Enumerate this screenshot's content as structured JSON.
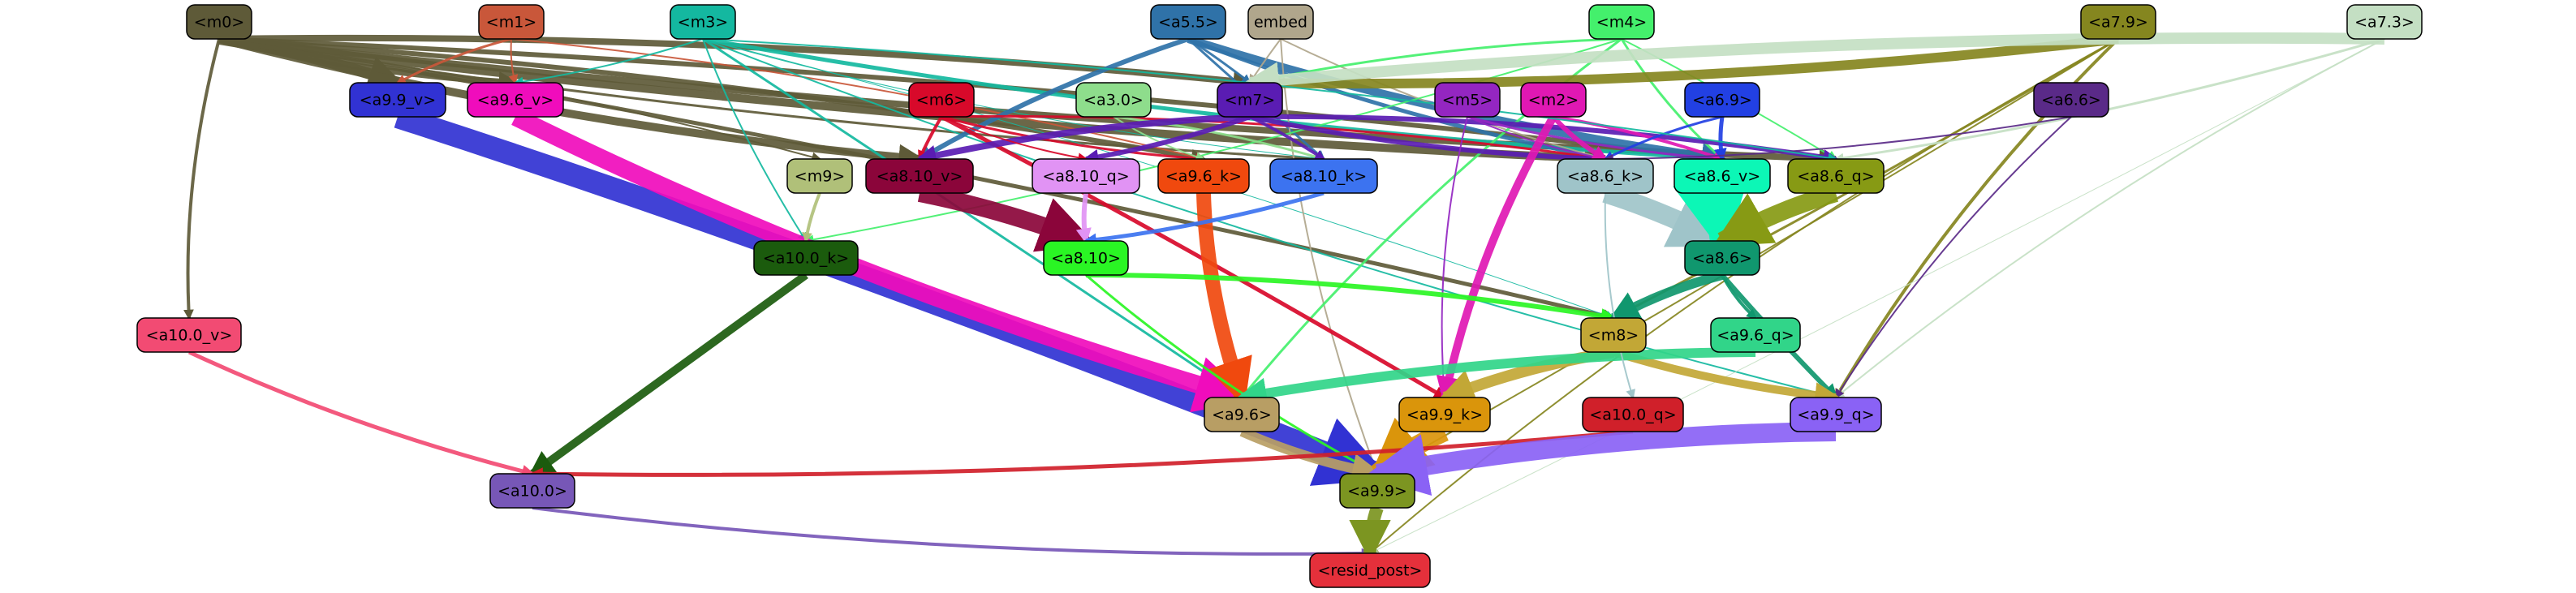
{
  "graph": {
    "nodes": [
      {
        "id": "m0",
        "label": "<m0>",
        "color": "#5e5a38",
        "text": "#000000"
      },
      {
        "id": "m1",
        "label": "<m1>",
        "color": "#c9573a",
        "text": "#000000"
      },
      {
        "id": "m3",
        "label": "<m3>",
        "color": "#14b8a0",
        "text": "#000000"
      },
      {
        "id": "a5.5",
        "label": "<a5.5>",
        "color": "#2f72a8",
        "text": "#000000"
      },
      {
        "id": "embed",
        "label": "embed",
        "color": "#b0a68c",
        "text": "#000000"
      },
      {
        "id": "m4",
        "label": "<m4>",
        "color": "#44f06c",
        "text": "#000000"
      },
      {
        "id": "a7.9",
        "label": "<a7.9>",
        "color": "#85861f",
        "text": "#000000"
      },
      {
        "id": "a7.3",
        "label": "<a7.3>",
        "color": "#c4dfc3",
        "text": "#000000"
      },
      {
        "id": "a9.9_v",
        "label": "<a9.9_v>",
        "color": "#3132d3",
        "text": "#000000"
      },
      {
        "id": "a9.6_v",
        "label": "<a9.6_v>",
        "color": "#f00cbc",
        "text": "#000000"
      },
      {
        "id": "m6",
        "label": "<m6>",
        "color": "#d8092a",
        "text": "#000000"
      },
      {
        "id": "a3.0",
        "label": "<a3.0>",
        "color": "#8edd8c",
        "text": "#000000"
      },
      {
        "id": "m7",
        "label": "<m7>",
        "color": "#5a1cb3",
        "text": "#000000"
      },
      {
        "id": "m5",
        "label": "<m5>",
        "color": "#9426c1",
        "text": "#000000"
      },
      {
        "id": "m2",
        "label": "<m2>",
        "color": "#e018b3",
        "text": "#000000"
      },
      {
        "id": "a6.9",
        "label": "<a6.9>",
        "color": "#2240e3",
        "text": "#000000"
      },
      {
        "id": "a6.6",
        "label": "<a6.6>",
        "color": "#5a2a88",
        "text": "#000000"
      },
      {
        "id": "m9",
        "label": "<m9>",
        "color": "#b0c079",
        "text": "#000000"
      },
      {
        "id": "a8.10_v",
        "label": "<a8.10_v>",
        "color": "#8b053a",
        "text": "#000000"
      },
      {
        "id": "a8.10_q",
        "label": "<a8.10_q>",
        "color": "#e193f4",
        "text": "#000000"
      },
      {
        "id": "a9.6_k",
        "label": "<a9.6_k>",
        "color": "#f0490e",
        "text": "#000000"
      },
      {
        "id": "a8.10_k",
        "label": "<a8.10_k>",
        "color": "#3c73f0",
        "text": "#000000"
      },
      {
        "id": "a8.6_k",
        "label": "<a8.6_k>",
        "color": "#9fc4c9",
        "text": "#000000"
      },
      {
        "id": "a8.6_v",
        "label": "<a8.6_v>",
        "color": "#0cf7b6",
        "text": "#000000"
      },
      {
        "id": "a8.6_q",
        "label": "<a8.6_q>",
        "color": "#879a14",
        "text": "#000000"
      },
      {
        "id": "a10.0_k",
        "label": "<a10.0_k>",
        "color": "#1b5b0d",
        "text": "#000000"
      },
      {
        "id": "a8.10",
        "label": "<a8.10>",
        "color": "#2af524",
        "text": "#000000"
      },
      {
        "id": "a8.6",
        "label": "<a8.6>",
        "color": "#10976e",
        "text": "#000000"
      },
      {
        "id": "a10.0_v",
        "label": "<a10.0_v>",
        "color": "#f24b73",
        "text": "#000000"
      },
      {
        "id": "m8",
        "label": "<m8>",
        "color": "#c2a736",
        "text": "#000000"
      },
      {
        "id": "a9.6_q",
        "label": "<a9.6_q>",
        "color": "#31d589",
        "text": "#000000"
      },
      {
        "id": "a9.6",
        "label": "<a9.6>",
        "color": "#b89e64",
        "text": "#000000"
      },
      {
        "id": "a9.9_k",
        "label": "<a9.9_k>",
        "color": "#da950b",
        "text": "#000000"
      },
      {
        "id": "a10.0_q",
        "label": "<a10.0_q>",
        "color": "#d0202a",
        "text": "#000000"
      },
      {
        "id": "a9.9_q",
        "label": "<a9.9_q>",
        "color": "#8a62f5",
        "text": "#000000"
      },
      {
        "id": "a10.0",
        "label": "<a10.0>",
        "color": "#7757b7",
        "text": "#000000"
      },
      {
        "id": "a9.9",
        "label": "<a9.9>",
        "color": "#7c9521",
        "text": "#000000"
      },
      {
        "id": "resid_post",
        "label": "<resid_post>",
        "color": "#e5303b",
        "text": "#000000"
      }
    ],
    "edges": [
      {
        "from": "m0",
        "to": "a9.9_v",
        "color": "#5e5a38",
        "weight": 14
      },
      {
        "from": "m0",
        "to": "a9.6_v",
        "color": "#5e5a38",
        "weight": 8
      },
      {
        "from": "m0",
        "to": "m7",
        "color": "#5e5a38",
        "weight": 8
      },
      {
        "from": "m0",
        "to": "a8.10_v",
        "color": "#5e5a38",
        "weight": 10
      },
      {
        "from": "m0",
        "to": "a9.6_k",
        "color": "#5e5a38",
        "weight": 6
      },
      {
        "from": "m0",
        "to": "a8.6_k",
        "color": "#5e5a38",
        "weight": 10
      },
      {
        "from": "m0",
        "to": "a8.6_v",
        "color": "#5e5a38",
        "weight": 6
      },
      {
        "from": "m0",
        "to": "a8.6_q",
        "color": "#5e5a38",
        "weight": 8
      },
      {
        "from": "m0",
        "to": "m9",
        "color": "#5e5a38",
        "weight": 2
      },
      {
        "from": "m0",
        "to": "a10.0_v",
        "color": "#5e5a38",
        "weight": 4
      },
      {
        "from": "m0",
        "to": "m8",
        "color": "#5e5a38",
        "weight": 5
      },
      {
        "from": "m0",
        "to": "a8.10_k",
        "color": "#5e5a38",
        "weight": 3
      },
      {
        "from": "m1",
        "to": "a9.9_v",
        "color": "#c9573a",
        "weight": 3
      },
      {
        "from": "m1",
        "to": "a9.6_v",
        "color": "#c9573a",
        "weight": 2
      },
      {
        "from": "m1",
        "to": "a9.6_k",
        "color": "#c9573a",
        "weight": 2
      },
      {
        "from": "m3",
        "to": "a9.6_v",
        "color": "#14b8a0",
        "weight": 2
      },
      {
        "from": "m3",
        "to": "a10.0_k",
        "color": "#14b8a0",
        "weight": 2
      },
      {
        "from": "m3",
        "to": "a8.6_v",
        "color": "#14b8a0",
        "weight": 5
      },
      {
        "from": "m3",
        "to": "a9.6",
        "color": "#14b8a0",
        "weight": 3
      },
      {
        "from": "m3",
        "to": "a9.9_q",
        "color": "#14b8a0",
        "weight": 2
      },
      {
        "from": "m3",
        "to": "m8",
        "color": "#14b8a0",
        "weight": 1
      },
      {
        "from": "m3",
        "to": "a8.10_k",
        "color": "#14b8a0",
        "weight": 1
      },
      {
        "from": "a5.5",
        "to": "a8.10_v",
        "color": "#2f72a8",
        "weight": 6
      },
      {
        "from": "a5.5",
        "to": "a8.6_v",
        "color": "#2f72a8",
        "weight": 10
      },
      {
        "from": "a5.5",
        "to": "m7",
        "color": "#2f72a8",
        "weight": 3
      },
      {
        "from": "a5.5",
        "to": "a8.6_k",
        "color": "#2f72a8",
        "weight": 5
      },
      {
        "from": "a5.5",
        "to": "a8.10_k",
        "color": "#2f72a8",
        "weight": 3
      },
      {
        "from": "embed",
        "to": "m7",
        "color": "#b0a68c",
        "weight": 2
      },
      {
        "from": "embed",
        "to": "a9.9",
        "color": "#b0a68c",
        "weight": 2
      },
      {
        "from": "embed",
        "to": "a8.6_k",
        "color": "#b0a68c",
        "weight": 2
      },
      {
        "from": "m4",
        "to": "m7",
        "color": "#44f06c",
        "weight": 3
      },
      {
        "from": "m4",
        "to": "a8.6_v",
        "color": "#44f06c",
        "weight": 3
      },
      {
        "from": "m4",
        "to": "a9.6",
        "color": "#44f06c",
        "weight": 3
      },
      {
        "from": "m4",
        "to": "a10.0_k",
        "color": "#44f06c",
        "weight": 2
      },
      {
        "from": "m4",
        "to": "a8.6_q",
        "color": "#44f06c",
        "weight": 2
      },
      {
        "from": "a7.9",
        "to": "m7",
        "color": "#85861f",
        "weight": 12
      },
      {
        "from": "a7.9",
        "to": "a9.9_q",
        "color": "#85861f",
        "weight": 4
      },
      {
        "from": "a7.9",
        "to": "m8",
        "color": "#85861f",
        "weight": 3
      },
      {
        "from": "a7.9",
        "to": "resid_post",
        "color": "#85861f",
        "weight": 2
      },
      {
        "from": "a7.9",
        "to": "a9.9",
        "color": "#85861f",
        "weight": 2
      },
      {
        "from": "a7.3",
        "to": "m7",
        "color": "#c4dfc3",
        "weight": 14
      },
      {
        "from": "a7.3",
        "to": "a8.6_q",
        "color": "#c4dfc3",
        "weight": 3
      },
      {
        "from": "a7.3",
        "to": "a9.9_q",
        "color": "#c4dfc3",
        "weight": 2
      },
      {
        "from": "a7.3",
        "to": "resid_post",
        "color": "#c4dfc3",
        "weight": 1
      },
      {
        "from": "a9.9_v",
        "to": "a9.9",
        "color": "#3132d3",
        "weight": 28
      },
      {
        "from": "a9.6_v",
        "to": "a9.6",
        "color": "#f00cbc",
        "weight": 22
      },
      {
        "from": "m6",
        "to": "a9.9_k",
        "color": "#d8092a",
        "weight": 5
      },
      {
        "from": "m6",
        "to": "a8.10_v",
        "color": "#d8092a",
        "weight": 4
      },
      {
        "from": "m6",
        "to": "a8.6_k",
        "color": "#d8092a",
        "weight": 3
      },
      {
        "from": "m6",
        "to": "a9.6_k",
        "color": "#d8092a",
        "weight": 3
      },
      {
        "from": "a3.0",
        "to": "a8.10_k",
        "color": "#8edd8c",
        "weight": 3
      },
      {
        "from": "a3.0",
        "to": "a9.6_k",
        "color": "#8edd8c",
        "weight": 2
      },
      {
        "from": "m7",
        "to": "a8.10_v",
        "color": "#5a1cb3",
        "weight": 8
      },
      {
        "from": "m7",
        "to": "a8.10_q",
        "color": "#5a1cb3",
        "weight": 6
      },
      {
        "from": "m7",
        "to": "a8.6_q",
        "color": "#5a1cb3",
        "weight": 6
      },
      {
        "from": "m7",
        "to": "a8.6_k",
        "color": "#5a1cb3",
        "weight": 6
      },
      {
        "from": "m7",
        "to": "a8.10_k",
        "color": "#5a1cb3",
        "weight": 4
      },
      {
        "from": "m5",
        "to": "a8.6_v",
        "color": "#9426c1",
        "weight": 3
      },
      {
        "from": "m5",
        "to": "a9.9_k",
        "color": "#9426c1",
        "weight": 2
      },
      {
        "from": "m5",
        "to": "a8.6_k",
        "color": "#9426c1",
        "weight": 2
      },
      {
        "from": "m2",
        "to": "a9.9_k",
        "color": "#e018b3",
        "weight": 10
      },
      {
        "from": "m2",
        "to": "a8.6_k",
        "color": "#e018b3",
        "weight": 6
      },
      {
        "from": "m2",
        "to": "a8.6_v",
        "color": "#e018b3",
        "weight": 4
      },
      {
        "from": "a6.9",
        "to": "a8.6_v",
        "color": "#2240e3",
        "weight": 5
      },
      {
        "from": "a6.9",
        "to": "a8.6_k",
        "color": "#2240e3",
        "weight": 3
      },
      {
        "from": "a6.6",
        "to": "a8.6_k",
        "color": "#5a2a88",
        "weight": 2
      },
      {
        "from": "a6.6",
        "to": "a9.9_q",
        "color": "#5a2a88",
        "weight": 2
      },
      {
        "from": "m9",
        "to": "a10.0_k",
        "color": "#b0c079",
        "weight": 4
      },
      {
        "from": "a8.10_v",
        "to": "a8.10",
        "color": "#8b053a",
        "weight": 22
      },
      {
        "from": "a8.10_q",
        "to": "a8.10",
        "color": "#e193f4",
        "weight": 6
      },
      {
        "from": "a9.6_k",
        "to": "a9.6",
        "color": "#f0490e",
        "weight": 18
      },
      {
        "from": "a8.10_k",
        "to": "a8.10",
        "color": "#3c73f0",
        "weight": 5
      },
      {
        "from": "a8.6_k",
        "to": "a8.6",
        "color": "#9fc4c9",
        "weight": 24
      },
      {
        "from": "a8.6_v",
        "to": "a8.6",
        "color": "#0cf7b6",
        "weight": 30
      },
      {
        "from": "a8.6_q",
        "to": "a8.6",
        "color": "#879a14",
        "weight": 22
      },
      {
        "from": "a10.0_k",
        "to": "a10.0",
        "color": "#1b5b0d",
        "weight": 10
      },
      {
        "from": "a8.10",
        "to": "m8",
        "color": "#2af524",
        "weight": 6
      },
      {
        "from": "a8.10",
        "to": "a9.9",
        "color": "#2af524",
        "weight": 3
      },
      {
        "from": "a8.6",
        "to": "m8",
        "color": "#10976e",
        "weight": 12
      },
      {
        "from": "a8.6",
        "to": "a9.6_q",
        "color": "#10976e",
        "weight": 4
      },
      {
        "from": "a8.6",
        "to": "a9.9_q",
        "color": "#10976e",
        "weight": 6
      },
      {
        "from": "a10.0_v",
        "to": "a10.0",
        "color": "#f24b73",
        "weight": 5
      },
      {
        "from": "m8",
        "to": "a9.9_k",
        "color": "#c2a736",
        "weight": 14
      },
      {
        "from": "m8",
        "to": "a9.9_q",
        "color": "#c2a736",
        "weight": 10
      },
      {
        "from": "a9.6_q",
        "to": "a9.6",
        "color": "#31d589",
        "weight": 12
      },
      {
        "from": "a9.6",
        "to": "a9.9",
        "color": "#b89e64",
        "weight": 12
      },
      {
        "from": "a9.9_k",
        "to": "a9.9",
        "color": "#da950b",
        "weight": 24
      },
      {
        "from": "a10.0_q",
        "to": "a10.0",
        "color": "#d0202a",
        "weight": 5
      },
      {
        "from": "a9.9_q",
        "to": "a9.9",
        "color": "#8a62f5",
        "weight": 24
      },
      {
        "from": "a10.0",
        "to": "resid_post",
        "color": "#7757b7",
        "weight": 4
      },
      {
        "from": "a9.9",
        "to": "resid_post",
        "color": "#7c9521",
        "weight": 16
      },
      {
        "from": "m6",
        "to": "a8.10_q",
        "color": "#d8092a",
        "weight": 2
      },
      {
        "from": "m3",
        "to": "a8.6_q",
        "color": "#14b8a0",
        "weight": 2
      },
      {
        "from": "a8.6_k",
        "to": "a10.0_q",
        "color": "#9fc4c9",
        "weight": 2
      }
    ]
  }
}
